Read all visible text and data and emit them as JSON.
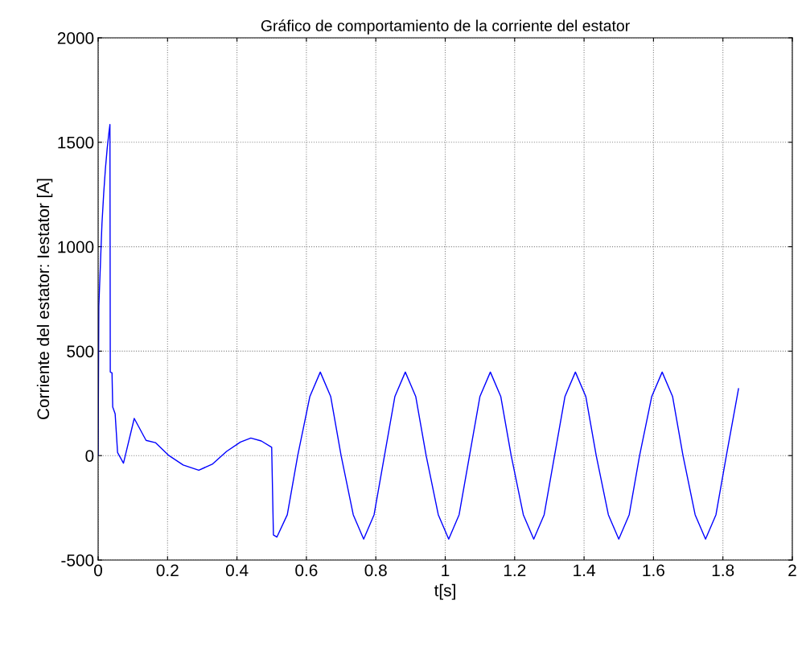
{
  "chart_data": {
    "type": "line",
    "title": "Gráfico de comportamiento de la corriente del estator",
    "xlabel": "t[s]",
    "ylabel": "Corriente del estator: Iestator [A]",
    "x": [
      0,
      0.002,
      0.007,
      0.011,
      0.016,
      0.021,
      0.026,
      0.031,
      0.034,
      0.035,
      0.04,
      0.042,
      0.049,
      0.056,
      0.073,
      0.104,
      0.138,
      0.165,
      0.204,
      0.245,
      0.29,
      0.33,
      0.37,
      0.41,
      0.44,
      0.47,
      0.5,
      0.505,
      0.515,
      0.545,
      0.575,
      0.61,
      0.64,
      0.67,
      0.7,
      0.735,
      0.765,
      0.795,
      0.825,
      0.855,
      0.885,
      0.915,
      0.945,
      0.98,
      1.01,
      1.04,
      1.07,
      1.1,
      1.13,
      1.16,
      1.19,
      1.225,
      1.255,
      1.285,
      1.315,
      1.345,
      1.375,
      1.405,
      1.435,
      1.47,
      1.5,
      1.53,
      1.56,
      1.595,
      1.625,
      1.655,
      1.685,
      1.72,
      1.75,
      1.78,
      1.81,
      1.845
    ],
    "series": [
      {
        "color": "#0000ff",
        "values": [
          0,
          716,
          935,
          1109,
          1254,
          1374,
          1469,
          1545,
          1585,
          400,
          396,
          233,
          200,
          15,
          -36,
          178,
          73,
          62,
          0,
          -45,
          -70,
          -40,
          20,
          65,
          84,
          70,
          40,
          -380,
          -390,
          -283,
          0,
          283,
          400,
          283,
          0,
          -283,
          -400,
          -283,
          0,
          283,
          400,
          283,
          0,
          -283,
          -400,
          -283,
          0,
          283,
          400,
          283,
          0,
          -283,
          -400,
          -283,
          0,
          283,
          400,
          283,
          0,
          -283,
          -400,
          -283,
          0,
          283,
          400,
          283,
          0,
          -283,
          -400,
          -283,
          0,
          320
        ]
      }
    ],
    "xlim": [
      0,
      2
    ],
    "ylim": [
      -500,
      2000
    ],
    "xticks": [
      0,
      0.2,
      0.4,
      0.6,
      0.8,
      1,
      1.2,
      1.4,
      1.6,
      1.8,
      2
    ],
    "yticks": [
      -500,
      0,
      500,
      1000,
      1500,
      2000
    ],
    "grid": true,
    "line_style": "solid",
    "marker": "none"
  }
}
